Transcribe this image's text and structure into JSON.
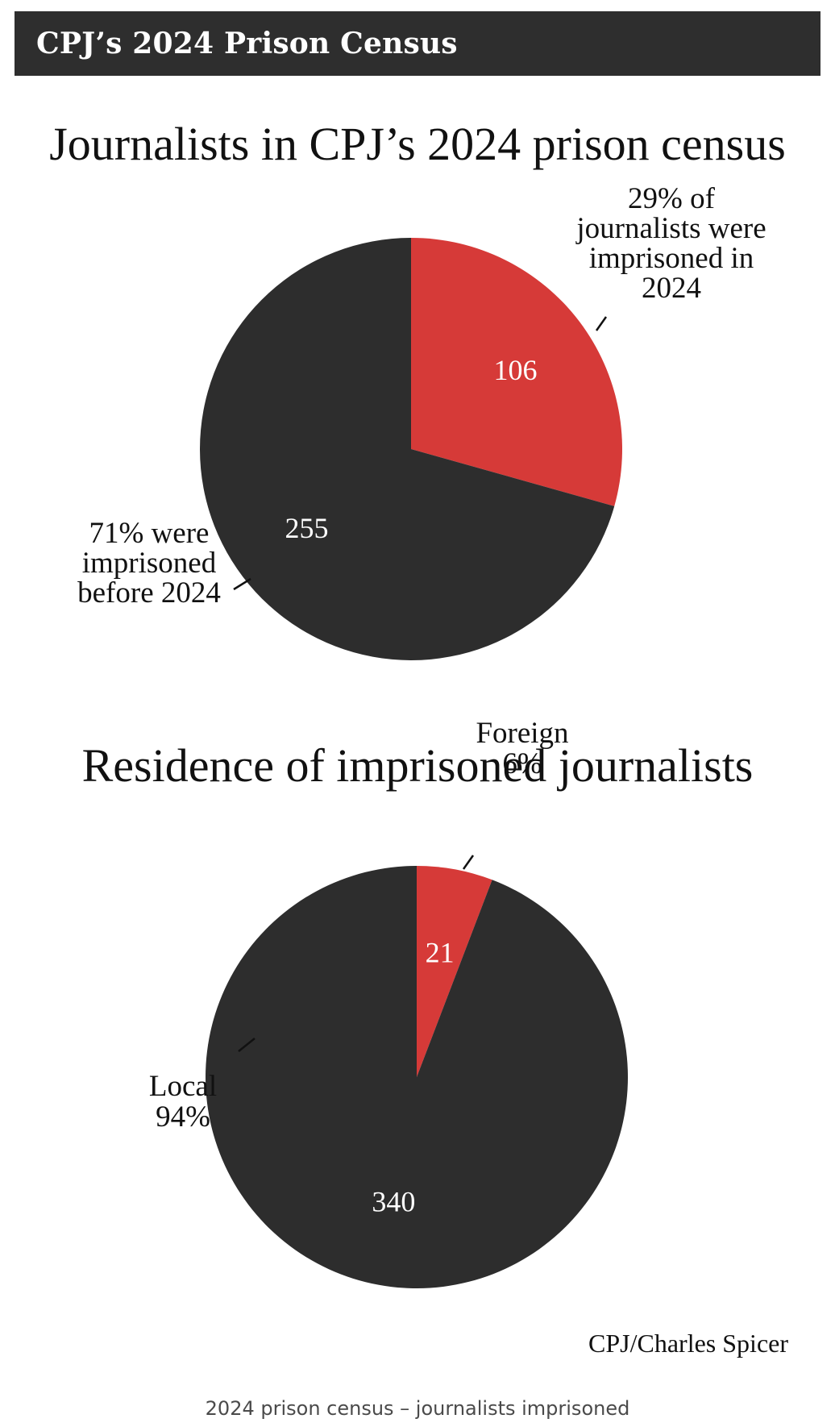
{
  "header": {
    "title": "CPJ’s 2024 Prison Census"
  },
  "chart_data": [
    {
      "type": "pie",
      "title": "Journalists in CPJ’s 2024 prison census",
      "slices": [
        {
          "label": "29% of journalists were imprisoned in 2024",
          "value": 106,
          "percent": 29,
          "color": "#d63a38",
          "label_lines": [
            "29% of",
            "journalists were",
            "imprisoned in",
            "2024"
          ]
        },
        {
          "label": "71% were imprisoned before 2024",
          "value": 255,
          "percent": 71,
          "color": "#2d2d2d",
          "label_lines": [
            "71% were",
            "imprisoned",
            "before 2024"
          ]
        }
      ]
    },
    {
      "type": "pie",
      "title": "Residence of imprisoned journalists",
      "slices": [
        {
          "label": "Foreign 6%",
          "value": 21,
          "percent": 6,
          "color": "#d63a38",
          "label_lines": [
            "Foreign",
            "6%"
          ]
        },
        {
          "label": "Local 94%",
          "value": 340,
          "percent": 94,
          "color": "#2d2d2d",
          "label_lines": [
            "Local",
            "94%"
          ]
        }
      ]
    }
  ],
  "credit": "CPJ/Charles Spicer",
  "caption": "2024 prison census – journalists imprisoned"
}
